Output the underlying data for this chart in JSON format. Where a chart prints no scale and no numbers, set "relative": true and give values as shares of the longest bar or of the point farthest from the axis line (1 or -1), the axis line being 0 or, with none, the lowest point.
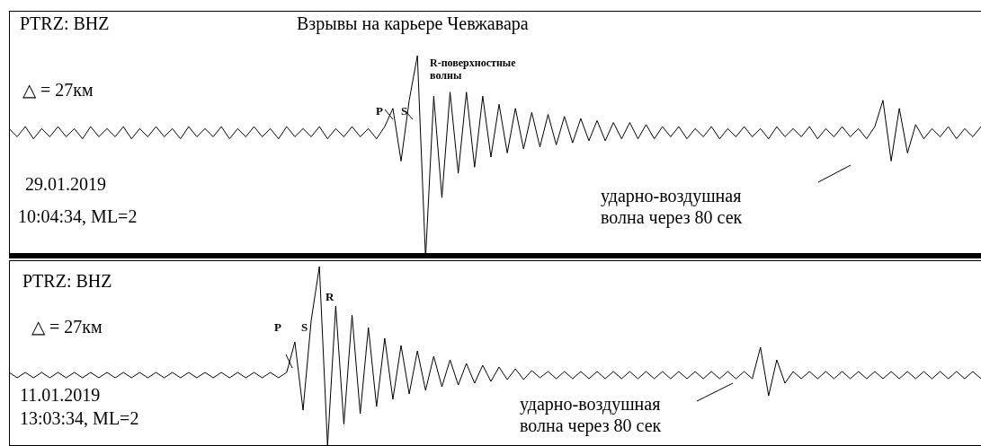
{
  "chart_data": [
    {
      "type": "line",
      "title": "Взрывы на карьере Чевжавара",
      "relative": true,
      "color": "#000000",
      "annotations": [
        "PTRZ: BHZ",
        "△ = 27км",
        "29.01.2019",
        "10:04:34, ML=2",
        "P",
        "S",
        "R-поверхностные волны",
        "ударно-воздушная волна через 80 сек"
      ],
      "categories": [
        null,
        null,
        null,
        null,
        null,
        null,
        null,
        null,
        null,
        null,
        null,
        null,
        null,
        null,
        null,
        null,
        null,
        null,
        null,
        null,
        null,
        null,
        null,
        null,
        null,
        null,
        null,
        null,
        null,
        null,
        null,
        null,
        null,
        null,
        null,
        null,
        null,
        null,
        null,
        null,
        null,
        null,
        null,
        null,
        null,
        null,
        null,
        null,
        null,
        null,
        null,
        null,
        null,
        null,
        null,
        null,
        null,
        null,
        null,
        null,
        null,
        null,
        null,
        null,
        null,
        null,
        null,
        null,
        null,
        null,
        null,
        null,
        null,
        null,
        null,
        null,
        null,
        null,
        null,
        null,
        null,
        null,
        null,
        null,
        null,
        null,
        null,
        null,
        null,
        null,
        null,
        null,
        null,
        null,
        null,
        null,
        null,
        null,
        null,
        null,
        null,
        null,
        null,
        null,
        null,
        null,
        null,
        null,
        null,
        null,
        null,
        null,
        null,
        null,
        null,
        null,
        null,
        null,
        null,
        null
      ],
      "values": [
        0.64,
        0.6,
        0.65,
        0.59,
        0.64,
        0.6,
        0.65,
        0.6,
        0.64,
        0.59,
        0.65,
        0.6,
        0.64,
        0.6,
        0.65,
        0.59,
        0.64,
        0.6,
        0.65,
        0.6,
        0.64,
        0.59,
        0.65,
        0.6,
        0.64,
        0.6,
        0.65,
        0.59,
        0.64,
        0.6,
        0.65,
        0.6,
        0.64,
        0.59,
        0.65,
        0.6,
        0.64,
        0.6,
        0.65,
        0.59,
        0.64,
        0.6,
        0.65,
        0.6,
        0.64,
        0.59,
        0.65,
        0.74,
        0.48,
        0.78,
        1,
        0,
        0.8,
        0.3,
        0.82,
        0.42,
        0.82,
        0.45,
        0.8,
        0.5,
        0.76,
        0.52,
        0.74,
        0.54,
        0.72,
        0.55,
        0.71,
        0.56,
        0.7,
        0.57,
        0.69,
        0.58,
        0.68,
        0.58,
        0.67,
        0.59,
        0.67,
        0.59,
        0.66,
        0.59,
        0.65,
        0.6,
        0.65,
        0.59,
        0.64,
        0.6,
        0.65,
        0.59,
        0.64,
        0.6,
        0.65,
        0.6,
        0.64,
        0.59,
        0.65,
        0.6,
        0.64,
        0.6,
        0.65,
        0.59,
        0.64,
        0.6,
        0.65,
        0.6,
        0.64,
        0.59,
        0.65,
        0.78,
        0.48,
        0.74,
        0.52,
        0.66,
        0.59,
        0.64,
        0.6,
        0.65,
        0.59,
        0.64,
        0.6,
        0.65
      ]
    },
    {
      "type": "line",
      "relative": true,
      "color": "#000000",
      "annotations": [
        "PTRZ: BHZ",
        "△ = 27км",
        "11.01.2019",
        "13:03:34, ML=2",
        "P",
        "S",
        "R",
        "ударно-воздушная волна через 80 сек"
      ],
      "categories": [
        null,
        null,
        null,
        null,
        null,
        null,
        null,
        null,
        null,
        null,
        null,
        null,
        null,
        null,
        null,
        null,
        null,
        null,
        null,
        null,
        null,
        null,
        null,
        null,
        null,
        null,
        null,
        null,
        null,
        null,
        null,
        null,
        null,
        null,
        null,
        null,
        null,
        null,
        null,
        null,
        null,
        null,
        null,
        null,
        null,
        null,
        null,
        null,
        null,
        null,
        null,
        null,
        null,
        null,
        null,
        null,
        null,
        null,
        null,
        null,
        null,
        null,
        null,
        null,
        null,
        null,
        null,
        null,
        null,
        null,
        null,
        null,
        null,
        null,
        null,
        null,
        null,
        null,
        null,
        null,
        null,
        null,
        null,
        null,
        null,
        null,
        null,
        null,
        null,
        null,
        null,
        null,
        null,
        null,
        null,
        null,
        null,
        null,
        null,
        null,
        null,
        null,
        null,
        null,
        null,
        null,
        null,
        null,
        null,
        null,
        null,
        null,
        null,
        null,
        null,
        null,
        null,
        null,
        null,
        null
      ],
      "values": [
        0.41,
        0.38,
        0.41,
        0.38,
        0.41,
        0.38,
        0.41,
        0.38,
        0.41,
        0.38,
        0.41,
        0.38,
        0.41,
        0.38,
        0.41,
        0.38,
        0.41,
        0.38,
        0.41,
        0.38,
        0.41,
        0.38,
        0.41,
        0.38,
        0.41,
        0.38,
        0.41,
        0.38,
        0.41,
        0.38,
        0.41,
        0.38,
        0.41,
        0.38,
        0.41,
        0.58,
        0.2,
        0.7,
        1,
        0,
        0.78,
        0.12,
        0.73,
        0.18,
        0.66,
        0.22,
        0.6,
        0.26,
        0.56,
        0.29,
        0.53,
        0.31,
        0.5,
        0.33,
        0.48,
        0.34,
        0.46,
        0.35,
        0.45,
        0.36,
        0.44,
        0.37,
        0.43,
        0.37,
        0.42,
        0.38,
        0.415,
        0.375,
        0.415,
        0.375,
        0.415,
        0.375,
        0.415,
        0.375,
        0.415,
        0.375,
        0.415,
        0.375,
        0.415,
        0.375,
        0.415,
        0.375,
        0.415,
        0.375,
        0.415,
        0.375,
        0.415,
        0.375,
        0.415,
        0.375,
        0.415,
        0.375,
        0.55,
        0.28,
        0.48,
        0.35,
        0.415,
        0.375,
        0.415,
        0.375,
        0.415,
        0.375,
        0.415,
        0.375,
        0.415,
        0.375,
        0.415,
        0.375,
        0.415,
        0.375,
        0.415,
        0.375,
        0.415,
        0.375,
        0.415,
        0.375,
        0.415,
        0.375,
        0.415,
        0.375
      ]
    }
  ]
}
